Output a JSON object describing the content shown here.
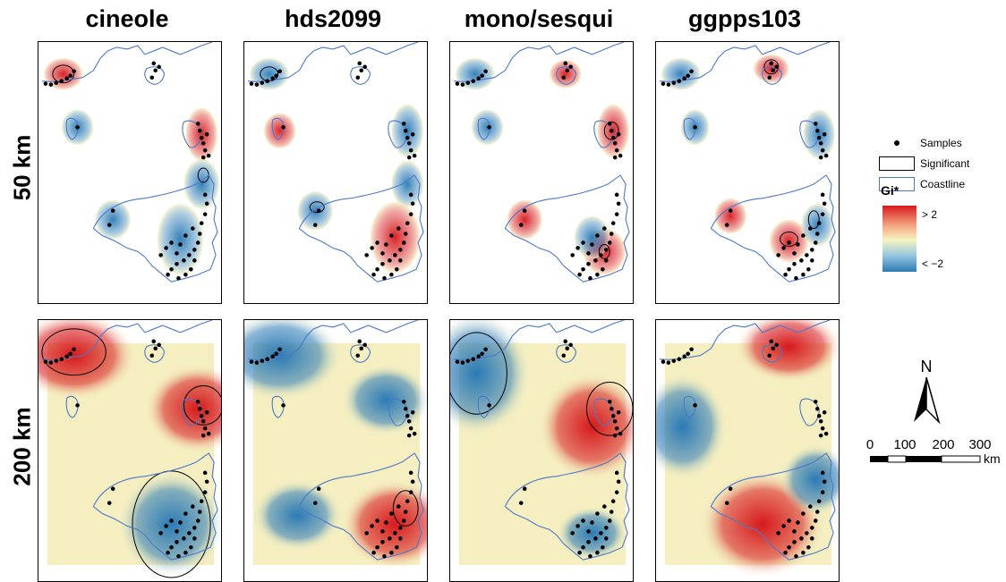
{
  "columns": [
    "cineole",
    "hds2099",
    "mono/sesqui",
    "ggpps103"
  ],
  "rows": [
    "50 km",
    "200 km"
  ],
  "legend": {
    "samples_label": "Samples",
    "significant_label": "Significant",
    "coastline_label": "Coastline",
    "gi_title": "Gi*",
    "gi_high": "> 2",
    "gi_low": "< −2",
    "colors": {
      "high": "#d7191c",
      "mid": "#f7f4c2",
      "low": "#2c7bb6",
      "coastline": "#4a78c8"
    }
  },
  "north_label": "N",
  "scale": {
    "ticks": [
      "0",
      "100",
      "200",
      "300"
    ],
    "unit": "km"
  }
}
